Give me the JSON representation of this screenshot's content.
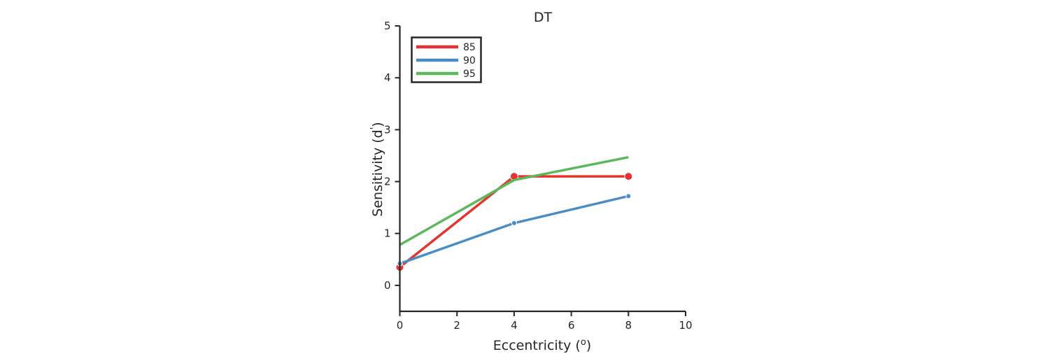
{
  "chart_data": {
    "type": "line",
    "title": "DT",
    "xlabel": "Eccentricity (",
    "xlabel_sup": "o",
    "xlabel_suffix": ")",
    "ylabel": "Sensitivity (d",
    "ylabel_sup": "'",
    "ylabel_suffix": ")",
    "xlim": [
      0,
      10
    ],
    "ylim": [
      -0.5,
      5
    ],
    "xticks": [
      0,
      2,
      4,
      6,
      8,
      10
    ],
    "yticks": [
      0,
      1,
      2,
      3,
      4,
      5
    ],
    "grid": false,
    "legend_position": "top-left",
    "x": [
      0,
      4,
      8
    ],
    "series": [
      {
        "name": "85",
        "color": "#e3342f",
        "values": [
          0.35,
          2.1,
          2.1
        ],
        "marker": "large-dot"
      },
      {
        "name": "90",
        "color": "#4a8cc4",
        "values": [
          0.42,
          1.2,
          1.72
        ],
        "marker": "small-dot"
      },
      {
        "name": "95",
        "color": "#5cb85c",
        "values": [
          0.78,
          2.03,
          2.47
        ],
        "marker": "none"
      }
    ]
  }
}
